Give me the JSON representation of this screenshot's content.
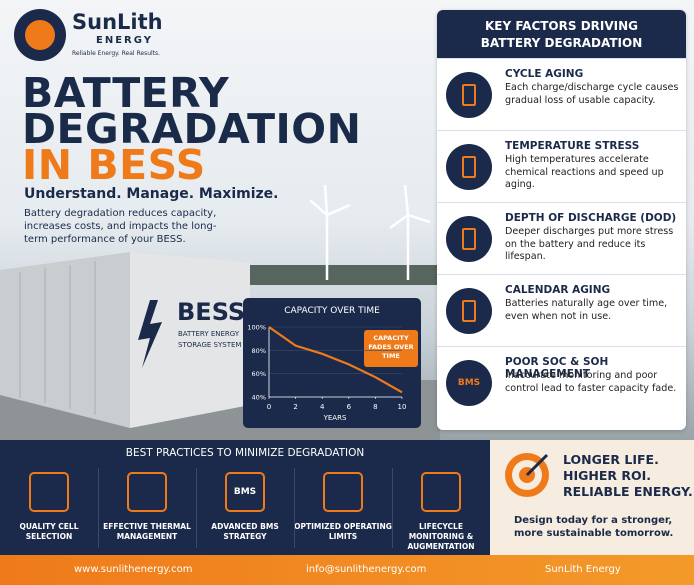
{
  "header": {
    "brand": "SunLith",
    "brand_sub": "ENERGY",
    "tagline": "Reliable Energy. Real Results."
  },
  "hero": {
    "title_lines": [
      "BATTERY",
      "DEGRADATION",
      "IN BESS"
    ],
    "subtitle": "Understand. Manage. Maximize.",
    "description": "Battery degradation reduces capacity, increases costs, and impacts the long-term performance of your BESS."
  },
  "container": {
    "label": "BESS",
    "sub_lines": [
      "BATTERY ENERGY",
      "STORAGE SYSTEM"
    ]
  },
  "chart_data": {
    "type": "line",
    "title": "CAPACITY OVER TIME",
    "x_label": "YEARS",
    "annotation": "CAPACITY FADES OVER TIME",
    "x": [
      0,
      2,
      4,
      6,
      8,
      10
    ],
    "series": [
      {
        "name": null,
        "color": "#ef7a1a",
        "values": [
          100,
          84,
          77,
          68,
          57,
          44
        ]
      }
    ],
    "xlim": [
      0,
      10
    ],
    "xticks": [
      0,
      2,
      4,
      6,
      8,
      10
    ],
    "ylim": [
      40,
      100
    ],
    "yticks": [
      {
        "value": 40,
        "label": "40%"
      },
      {
        "value": 60,
        "label": "60%"
      },
      {
        "value": 80,
        "label": "80%"
      },
      {
        "value": 100,
        "label": "100%"
      }
    ]
  },
  "factors": {
    "title": "KEY FACTORS DRIVING BATTERY DEGRADATION",
    "items": [
      {
        "title": "CYCLE AGING",
        "text": "Each charge/discharge cycle causes gradual loss of usable capacity."
      },
      {
        "title": "TEMPERATURE STRESS",
        "text": "High temperatures accelerate chemical reactions and speed up aging."
      },
      {
        "title": "DEPTH OF DISCHARGE (DOD)",
        "text": "Deeper discharges put more stress on the battery and reduce its lifespan."
      },
      {
        "title": "CALENDAR AGING",
        "text": "Batteries naturally age over time, even when not in use."
      },
      {
        "title": "POOR SOC & SOH MANAGEMENT",
        "text": "Inaccurate monitoring and poor control lead to faster capacity fade.",
        "icon_label": "BMS"
      }
    ]
  },
  "practices": {
    "title": "BEST PRACTICES TO MINIMIZE DEGRADATION",
    "items": [
      {
        "label": "QUALITY CELL SELECTION"
      },
      {
        "label": "EFFECTIVE THERMAL MANAGEMENT"
      },
      {
        "label": "ADVANCED BMS STRATEGY",
        "icon_label": "BMS"
      },
      {
        "label": "OPTIMIZED OPERATING LIMITS"
      },
      {
        "label": "LIFECYCLE MONITORING & AUGMENTATION"
      }
    ]
  },
  "cta": {
    "headline_lines": [
      "LONGER LIFE.",
      "HIGHER ROI.",
      "RELIABLE ENERGY."
    ],
    "text": "Design today for a stronger, more sustainable tomorrow."
  },
  "footer": {
    "website": "www.sunlithenergy.com",
    "email": "info@sunlithenergy.com",
    "linkedin": "SunLith Energy"
  }
}
